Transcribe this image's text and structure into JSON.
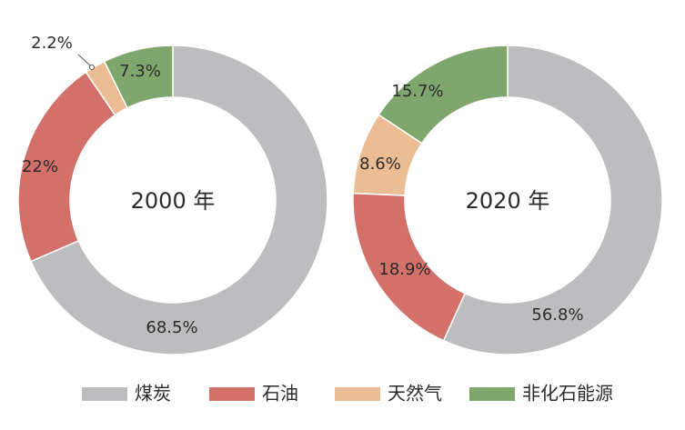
{
  "chart_data": {
    "type": "pie",
    "variant": "donut",
    "categories": [
      "煤炭",
      "石油",
      "天然气",
      "非化石能源"
    ],
    "colors": [
      "#bdbdc0",
      "#d4706a",
      "#ecbd94",
      "#7fa66c"
    ],
    "charts": [
      {
        "center_label": "2000 年",
        "values": [
          68.5,
          22,
          2.2,
          7.3
        ],
        "value_labels": [
          "68.5%",
          "22%",
          "2.2%",
          "7.3%"
        ]
      },
      {
        "center_label": "2020 年",
        "values": [
          56.8,
          18.9,
          8.6,
          15.7
        ],
        "value_labels": [
          "56.8%",
          "18.9%",
          "8.6%",
          "15.7%"
        ]
      }
    ],
    "legend_position": "bottom"
  }
}
